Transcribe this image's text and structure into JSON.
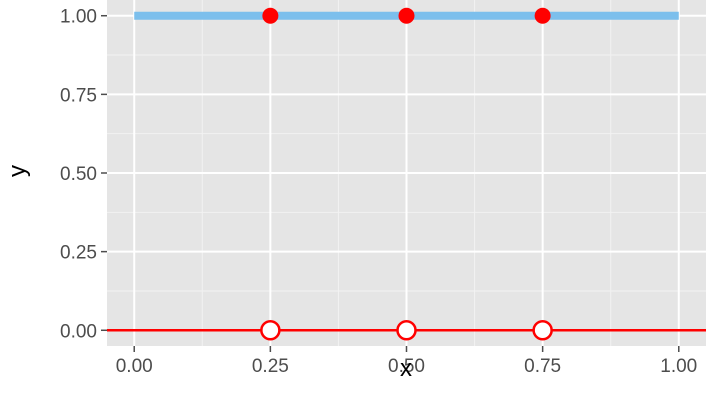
{
  "chart_data": {
    "type": "line",
    "title": "",
    "xlabel": "x",
    "ylabel": "y",
    "xlim": [
      -0.05,
      1.05
    ],
    "ylim": [
      -0.05,
      1.05
    ],
    "x_ticks": [
      0,
      0.25,
      0.5,
      0.75,
      1
    ],
    "x_tick_labels": [
      "0.00",
      "0.25",
      "0.50",
      "0.75",
      "1.00"
    ],
    "y_ticks": [
      0,
      0.25,
      0.5,
      0.75,
      1
    ],
    "y_tick_labels": [
      "0.00",
      "0.25",
      "0.50",
      "0.75",
      "1.00"
    ],
    "grid": true,
    "background_color": "#e5e5e5",
    "series": [
      {
        "type": "line",
        "color": "#7cbfec",
        "x": [
          0,
          1
        ],
        "y": [
          1,
          1
        ]
      },
      {
        "type": "line",
        "color": "#ff0000",
        "x": [
          -0.05,
          1.05
        ],
        "y": [
          0,
          0
        ]
      },
      {
        "type": "scatter",
        "marker": "filled-circle",
        "color": "#ff0000",
        "x": [
          0.25,
          0.5,
          0.75
        ],
        "y": [
          1,
          1,
          1
        ]
      },
      {
        "type": "scatter",
        "marker": "open-circle",
        "color": "#ff0000",
        "x": [
          0.25,
          0.5,
          0.75
        ],
        "y": [
          0,
          0,
          0
        ]
      }
    ]
  }
}
